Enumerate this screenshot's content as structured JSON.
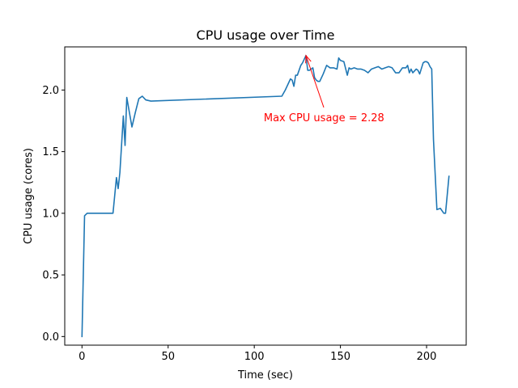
{
  "chart_data": {
    "type": "line",
    "title": "CPU usage over Time",
    "xlabel": "Time (sec)",
    "ylabel": "CPU usage (cores)",
    "xlim": [
      -10,
      223
    ],
    "ylim": [
      -0.07,
      2.35
    ],
    "xticks": [
      0,
      50,
      100,
      150,
      200
    ],
    "xtick_labels": [
      "0",
      "50",
      "100",
      "150",
      "200"
    ],
    "yticks": [
      0.0,
      0.5,
      1.0,
      1.5,
      2.0
    ],
    "ytick_labels": [
      "0.0",
      "0.5",
      "1.0",
      "1.5",
      "2.0"
    ],
    "grid": false,
    "line_color": "#1f77b4",
    "series": [
      {
        "x": [
          0,
          1.5,
          3,
          5,
          8,
          10,
          12,
          14,
          16,
          18,
          20,
          21,
          22,
          24,
          25,
          26,
          27,
          29,
          31,
          33,
          35,
          37,
          40,
          116,
          118,
          121,
          122,
          123,
          124,
          125,
          127,
          128,
          130,
          131,
          132,
          134,
          135,
          136,
          137,
          138,
          140,
          142,
          144,
          146,
          148,
          149,
          150,
          152,
          154,
          155,
          156,
          158,
          160,
          162,
          164,
          166,
          168,
          170,
          172,
          174,
          176,
          178,
          180,
          182,
          184,
          186,
          188,
          189,
          190,
          191,
          192,
          194,
          195,
          196,
          198,
          199,
          200,
          201,
          202,
          203,
          204,
          206,
          208,
          210,
          211,
          213
        ],
        "y": [
          0.0,
          0.98,
          1.0,
          1.0,
          1.0,
          1.0,
          1.0,
          1.0,
          1.0,
          1.0,
          1.29,
          1.2,
          1.33,
          1.79,
          1.55,
          1.94,
          1.86,
          1.7,
          1.82,
          1.93,
          1.95,
          1.92,
          1.91,
          1.95,
          2.0,
          2.09,
          2.08,
          2.03,
          2.12,
          2.12,
          2.2,
          2.22,
          2.28,
          2.16,
          2.16,
          2.18,
          2.1,
          2.08,
          2.07,
          2.07,
          2.13,
          2.2,
          2.18,
          2.18,
          2.17,
          2.26,
          2.24,
          2.23,
          2.12,
          2.18,
          2.17,
          2.18,
          2.17,
          2.17,
          2.16,
          2.14,
          2.17,
          2.18,
          2.19,
          2.17,
          2.18,
          2.19,
          2.18,
          2.14,
          2.14,
          2.18,
          2.18,
          2.2,
          2.14,
          2.17,
          2.14,
          2.17,
          2.16,
          2.13,
          2.22,
          2.23,
          2.23,
          2.22,
          2.19,
          2.17,
          1.6,
          1.03,
          1.04,
          1.0,
          1.0,
          1.3
        ]
      }
    ],
    "annotation": {
      "text": "Max CPU usage = 2.28",
      "color": "#ff0000",
      "point": [
        130,
        2.28
      ],
      "text_pos": [
        105.5,
        1.78
      ]
    }
  }
}
